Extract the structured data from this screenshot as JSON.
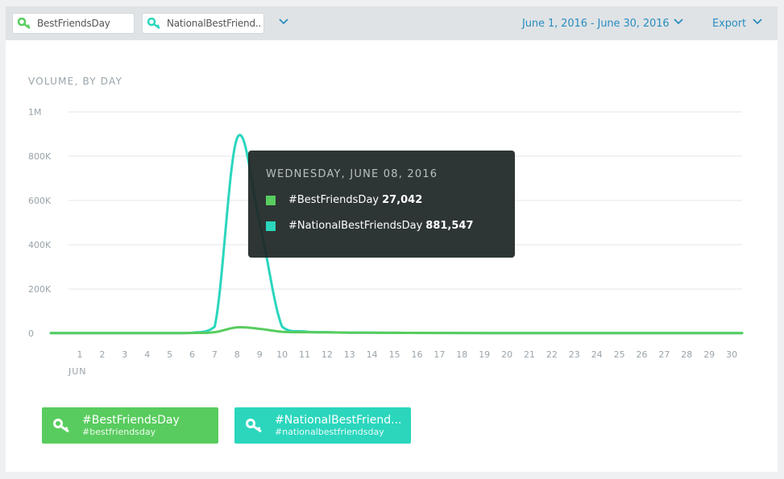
{
  "filters": {
    "chip1": "BestFriendsDay",
    "chip2": "NationalBestFriend..",
    "date_range": "June 1, 2016 - June 30, 2016",
    "export": "Export"
  },
  "colors": {
    "series1": "#58cc5e",
    "series2": "#2bd6bd",
    "link": "#2a8dc0"
  },
  "tooltip": {
    "date": "WEDNESDAY, JUNE 08, 2016",
    "rows": [
      {
        "name": "#BestFriendsDay",
        "value": "27,042"
      },
      {
        "name": "#NationalBestFriendsDay",
        "value": "881,547"
      }
    ]
  },
  "legend": [
    {
      "title": "#BestFriendsDay",
      "subtitle": "#bestfriendsday"
    },
    {
      "title": "#NationalBestFriend...",
      "subtitle": "#nationalbestfriendsday"
    }
  ],
  "chart_data": {
    "type": "line",
    "title": "VOLUME, BY DAY",
    "xlabel": "JUN",
    "ylabel": "",
    "ylim": [
      0,
      1000000
    ],
    "y_ticks": [
      "0",
      "200K",
      "400K",
      "600K",
      "800K",
      "1M"
    ],
    "x": [
      1,
      2,
      3,
      4,
      5,
      6,
      7,
      8,
      9,
      10,
      11,
      12,
      13,
      14,
      15,
      16,
      17,
      18,
      19,
      20,
      21,
      22,
      23,
      24,
      25,
      26,
      27,
      28,
      29,
      30
    ],
    "series": [
      {
        "name": "#BestFriendsDay",
        "values": [
          1000,
          1000,
          1000,
          1000,
          1000,
          1500,
          5000,
          27042,
          20000,
          7000,
          5000,
          4000,
          3000,
          2500,
          2000,
          1800,
          1500,
          1500,
          1200,
          1200,
          1000,
          1000,
          1000,
          1000,
          1000,
          1000,
          1000,
          1000,
          1000,
          1000
        ]
      },
      {
        "name": "#NationalBestFriendsDay",
        "values": [
          1000,
          1000,
          1000,
          1000,
          1000,
          2000,
          30000,
          881547,
          500000,
          30000,
          8000,
          5000,
          3000,
          2500,
          2000,
          1500,
          1500,
          1200,
          1200,
          1000,
          1000,
          1000,
          1000,
          1000,
          1000,
          1000,
          1000,
          1000,
          1000,
          1000
        ]
      }
    ],
    "grid": true,
    "legend_position": "bottom-left"
  }
}
